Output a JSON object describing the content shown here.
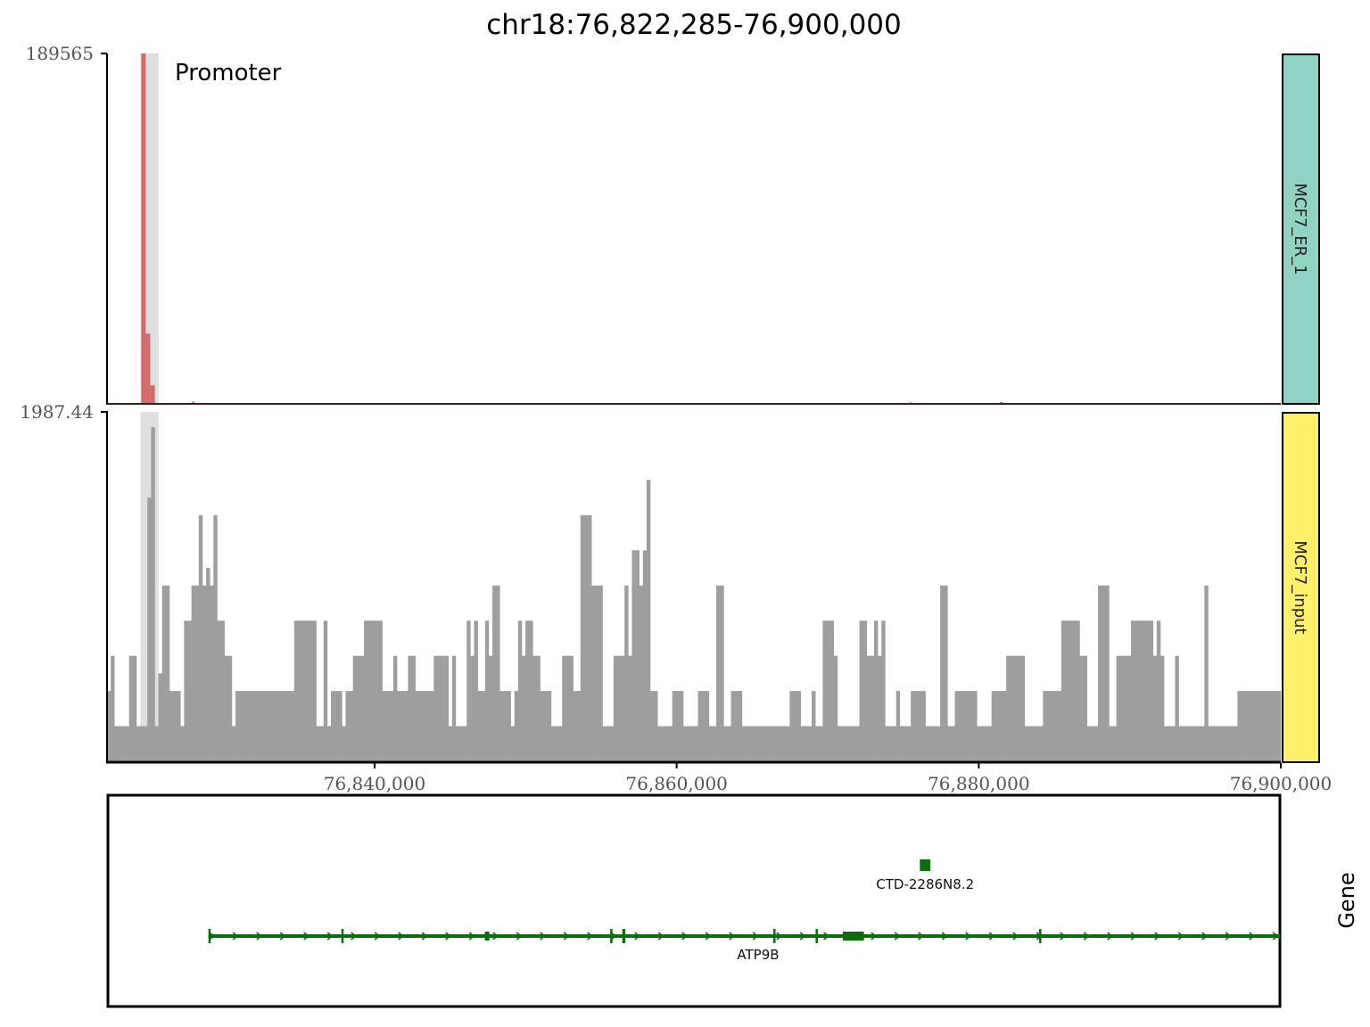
{
  "title": "chr18:76,822,285-76,900,000",
  "colors": {
    "er_bar": "#d46a6a",
    "input_bar": "#9e9e9e",
    "highlight": "#d9d9d9",
    "er_strip": "#8fd3c5",
    "input_strip": "#fff06a",
    "gene": "#0a6e0a"
  },
  "chart_data": {
    "type": "bar",
    "x_range": [
      76822285,
      76900000
    ],
    "x_ticks": [
      76840000,
      76860000,
      76880000,
      76900000
    ],
    "x_tick_labels": [
      "76,840,000",
      "76,860,000",
      "76,880,000",
      "76,900,000"
    ],
    "highlight_region": {
      "start": 76824500,
      "end": 76825700,
      "label": "Promoter"
    },
    "tracks": [
      {
        "name": "MCF7_ER_1",
        "ylim": [
          0,
          189565
        ],
        "ymax_label": "189565",
        "x": [
          76824700,
          76825000,
          76825300,
          76828000,
          76875500,
          76881500
        ],
        "values": [
          189565,
          38000,
          10000,
          1200,
          600,
          1100
        ]
      },
      {
        "name": "MCF7_input",
        "ylim": [
          0,
          1987.44
        ],
        "ymax_label": "1987.44",
        "bin_start": 76822285,
        "bin_width": 243,
        "values": [
          400,
          600,
          200,
          200,
          200,
          200,
          600,
          600,
          200,
          200,
          200,
          1500,
          1900,
          200,
          500,
          1000,
          1000,
          400,
          400,
          400,
          200,
          800,
          800,
          1000,
          1000,
          1400,
          1000,
          1100,
          1000,
          1400,
          800,
          800,
          600,
          600,
          200,
          400,
          400,
          400,
          400,
          400,
          400,
          400,
          400,
          400,
          400,
          400,
          400,
          400,
          400,
          400,
          400,
          800,
          800,
          800,
          800,
          800,
          800,
          200,
          200,
          800,
          200,
          400,
          400,
          400,
          200,
          400,
          400,
          600,
          600,
          600,
          800,
          800,
          800,
          800,
          800,
          400,
          400,
          400,
          600,
          400,
          400,
          400,
          600,
          600,
          400,
          400,
          400,
          400,
          400,
          600,
          600,
          600,
          600,
          200,
          600,
          200,
          200,
          200,
          800,
          600,
          800,
          400,
          400,
          800,
          600,
          1000,
          1000,
          400,
          400,
          400,
          200,
          400,
          800,
          600,
          800,
          800,
          600,
          600,
          400,
          400,
          400,
          200,
          200,
          200,
          600,
          600,
          600,
          400,
          400,
          1400,
          1400,
          1400,
          1000,
          1000,
          1000,
          200,
          200,
          200,
          600,
          600,
          600,
          1000,
          600,
          1200,
          1200,
          1000,
          1200,
          1600,
          400,
          400,
          200,
          200,
          200,
          200,
          400,
          400,
          400,
          200,
          200,
          200,
          200,
          400,
          400,
          400,
          200,
          200,
          1000,
          1000,
          200,
          200,
          400,
          400,
          400,
          200,
          200,
          200,
          200,
          200,
          200,
          200,
          200,
          200,
          200,
          200,
          200,
          200,
          400,
          400,
          400,
          200,
          200,
          200,
          400,
          200,
          200,
          800,
          800,
          800,
          600,
          200,
          200,
          200,
          200,
          200,
          200,
          800,
          800,
          600,
          600,
          800,
          600,
          800,
          200,
          200,
          200,
          400,
          200,
          200,
          200,
          400,
          400,
          400,
          400,
          200,
          200,
          200,
          200,
          1000,
          1000,
          200,
          200,
          400,
          400,
          400,
          400,
          400,
          400,
          200,
          200,
          200,
          200,
          400,
          400,
          400,
          400,
          600,
          600,
          600,
          600,
          600,
          200,
          200,
          200,
          200,
          200,
          400,
          400,
          400,
          400,
          400,
          800,
          800,
          800,
          800,
          800,
          600,
          600,
          200,
          200,
          200,
          1000,
          1000,
          1000,
          200,
          200,
          600,
          600,
          600,
          600,
          800,
          800,
          800,
          800,
          800,
          800,
          600,
          800,
          600,
          200,
          200,
          200,
          600,
          200,
          200,
          200,
          200,
          200,
          200,
          200,
          1000,
          200,
          200,
          200,
          200,
          200,
          200,
          200,
          200,
          400,
          400,
          400,
          400,
          400,
          400,
          400,
          400,
          400,
          400,
          400,
          400,
          400,
          400,
          400,
          400,
          200,
          200,
          200,
          400,
          400,
          200,
          200,
          200,
          200,
          200,
          400,
          400,
          200,
          200,
          200,
          200,
          200,
          200,
          200,
          600,
          200,
          200,
          400,
          200,
          400,
          400,
          400,
          400,
          400,
          400,
          200,
          200,
          600,
          200,
          200,
          600,
          600,
          200,
          200,
          400,
          400,
          200,
          200,
          200,
          200,
          400,
          200,
          200,
          200,
          200,
          200,
          400,
          400,
          400,
          400,
          200,
          200,
          200,
          200,
          200,
          200,
          400,
          400,
          200,
          200,
          200,
          400,
          200,
          200,
          200,
          200,
          200,
          200,
          200,
          200,
          200,
          200,
          200,
          200,
          200,
          200,
          400,
          400,
          400,
          200,
          200,
          200,
          200,
          200,
          200,
          200,
          200,
          200,
          400,
          400,
          400,
          400,
          400,
          400,
          400,
          200,
          200,
          200,
          200,
          200,
          200,
          200,
          200,
          200,
          200,
          200,
          200
        ]
      }
    ],
    "gene_track": {
      "label": "Gene",
      "genes": [
        {
          "name": "CTD-2286N8.2",
          "start": 76876100,
          "end": 76876800,
          "exons": [
            [
              76876100,
              76876800
            ]
          ]
        },
        {
          "name": "ATP9B",
          "start": 76829000,
          "end": 76900000,
          "exons": [
            [
              76829000,
              76829100
            ],
            [
              76837800,
              76837900
            ],
            [
              76847300,
              76847600
            ],
            [
              76855600,
              76855700
            ],
            [
              76856400,
              76856600
            ],
            [
              76866400,
              76866500
            ],
            [
              76869200,
              76869300
            ],
            [
              76871000,
              76872400
            ],
            [
              76884000,
              76884100
            ]
          ]
        }
      ]
    }
  }
}
